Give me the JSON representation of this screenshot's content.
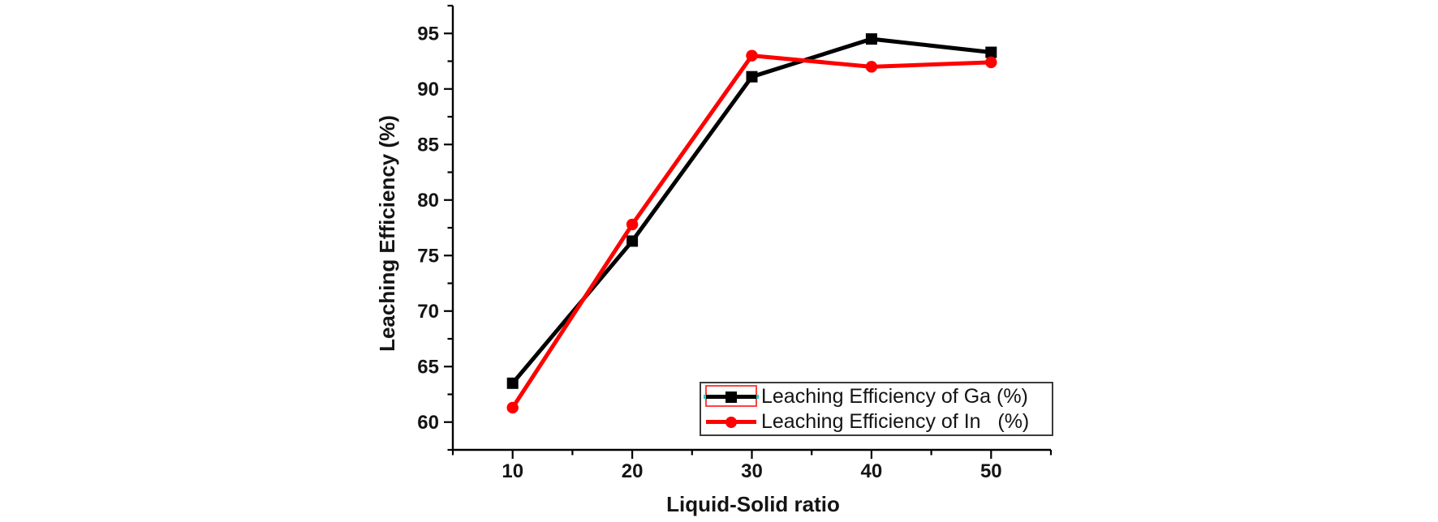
{
  "figure": {
    "background": "#ffffff",
    "axis_color": "#000000",
    "text_color": "#141414"
  },
  "chart_data": {
    "type": "line",
    "xlabel": "Liquid-Solid ratio",
    "ylabel": "Leaching Efficiency (%)",
    "x": [
      10,
      20,
      30,
      40,
      50
    ],
    "series": [
      {
        "name": "Leaching Efficiency of Ga (%)",
        "color": "#000000",
        "marker": "square",
        "values": [
          63.5,
          76.3,
          91.1,
          94.5,
          93.3
        ]
      },
      {
        "name": "Leaching Efficiency of In   (%)",
        "color": "#fe0000",
        "marker": "circle",
        "values": [
          61.3,
          77.8,
          93.0,
          92.0,
          92.4
        ]
      }
    ],
    "xlim": [
      5,
      55
    ],
    "ylim": [
      57.5,
      97.5
    ],
    "x_ticks": [
      10,
      20,
      30,
      40,
      50
    ],
    "y_ticks": [
      60,
      65,
      70,
      75,
      80,
      85,
      90,
      95
    ],
    "x_minor_step": 5,
    "y_minor_step": 2.5,
    "grid": false,
    "legend": {
      "position": "inside-bottom-right",
      "border": true,
      "first_entry_selected": true,
      "selection_box_color": "#ff4242",
      "selection_handle_color": "#2ec8c8"
    }
  }
}
